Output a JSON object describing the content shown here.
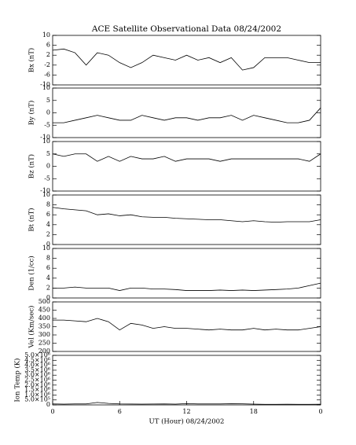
{
  "chart_data": [
    {
      "type": "line",
      "title": "ACE Satellite Observational Data   08/24/2002",
      "ylabel": "Bx (nT)",
      "x": [
        0,
        1,
        2,
        3,
        4,
        5,
        6,
        7,
        8,
        9,
        10,
        11,
        12,
        13,
        14,
        15,
        16,
        17,
        18,
        19,
        20,
        21,
        22,
        23,
        24
      ],
      "values": [
        4,
        4.5,
        3,
        -2,
        3,
        2,
        -1,
        -3,
        -1,
        2,
        1,
        0,
        2,
        0,
        1,
        -1,
        1,
        -4,
        -3,
        1,
        1,
        1,
        0,
        -1,
        -1
      ],
      "xlim": [
        0,
        24
      ],
      "ylim": [
        -10,
        10
      ],
      "yticks": [
        -10,
        -6,
        -2,
        2,
        6,
        10
      ],
      "color": "#000000"
    },
    {
      "type": "line",
      "ylabel": "By (nT)",
      "x": [
        0,
        1,
        2,
        3,
        4,
        5,
        6,
        7,
        8,
        9,
        10,
        11,
        12,
        13,
        14,
        15,
        16,
        17,
        18,
        19,
        20,
        21,
        22,
        23,
        24
      ],
      "values": [
        -4,
        -4,
        -3,
        -2,
        -1,
        -2,
        -3,
        -3,
        -1,
        -2,
        -3,
        -2,
        -2,
        -3,
        -2,
        -2,
        -1,
        -3,
        -1,
        -2,
        -3,
        -4,
        -4,
        -3,
        2
      ],
      "xlim": [
        0,
        24
      ],
      "ylim": [
        -10,
        10
      ],
      "yticks": [
        -10,
        -5,
        0,
        5,
        10
      ],
      "color": "#000000"
    },
    {
      "type": "line",
      "ylabel": "Bz (nT)",
      "x": [
        0,
        1,
        2,
        3,
        4,
        5,
        6,
        7,
        8,
        9,
        10,
        11,
        12,
        13,
        14,
        15,
        16,
        17,
        18,
        19,
        20,
        21,
        22,
        23,
        24
      ],
      "values": [
        5,
        4,
        5,
        5,
        2,
        4,
        2,
        4,
        3,
        3,
        4,
        2,
        3,
        3,
        3,
        2,
        3,
        3,
        3,
        3,
        3,
        3,
        3,
        2,
        5
      ],
      "xlim": [
        0,
        24
      ],
      "ylim": [
        -10,
        10
      ],
      "yticks": [
        -10,
        -5,
        0,
        5,
        10
      ],
      "color": "#000000"
    },
    {
      "type": "line",
      "ylabel": "Bt (nT)",
      "x": [
        0,
        1,
        2,
        3,
        4,
        5,
        6,
        7,
        8,
        9,
        10,
        11,
        12,
        13,
        14,
        15,
        16,
        17,
        18,
        19,
        20,
        21,
        22,
        23,
        24
      ],
      "values": [
        7.5,
        7.2,
        7,
        6.8,
        6,
        6.2,
        5.8,
        6,
        5.6,
        5.5,
        5.5,
        5.3,
        5.2,
        5.1,
        5,
        5,
        4.8,
        4.6,
        4.8,
        4.6,
        4.5,
        4.6,
        4.6,
        4.6,
        5
      ],
      "xlim": [
        0,
        24
      ],
      "ylim": [
        0,
        10
      ],
      "yticks": [
        0,
        2,
        4,
        6,
        8,
        10
      ],
      "color": "#000000"
    },
    {
      "type": "line",
      "ylabel": "Den (1/cc)",
      "x": [
        0,
        1,
        2,
        3,
        4,
        5,
        6,
        7,
        8,
        9,
        10,
        11,
        12,
        13,
        14,
        15,
        16,
        17,
        18,
        19,
        20,
        21,
        22,
        23,
        24
      ],
      "values": [
        2,
        2,
        2.2,
        2,
        2,
        2,
        1.5,
        2,
        2,
        1.8,
        1.8,
        1.7,
        1.5,
        1.5,
        1.5,
        1.6,
        1.5,
        1.6,
        1.5,
        1.6,
        1.7,
        1.8,
        2,
        2.5,
        3
      ],
      "xlim": [
        0,
        24
      ],
      "ylim": [
        0,
        10
      ],
      "yticks": [
        0,
        2,
        4,
        6,
        8,
        10
      ],
      "color": "#000000"
    },
    {
      "type": "line",
      "ylabel": "Vel (Km/sec)",
      "x": [
        0,
        1,
        2,
        3,
        4,
        5,
        6,
        7,
        8,
        9,
        10,
        11,
        12,
        13,
        14,
        15,
        16,
        17,
        18,
        19,
        20,
        21,
        22,
        23,
        24
      ],
      "values": [
        390,
        390,
        385,
        380,
        400,
        380,
        330,
        370,
        360,
        340,
        350,
        340,
        340,
        335,
        330,
        335,
        330,
        330,
        340,
        330,
        335,
        330,
        330,
        340,
        350
      ],
      "xlim": [
        0,
        24
      ],
      "ylim": [
        200,
        500
      ],
      "yticks": [
        200,
        250,
        300,
        350,
        400,
        450,
        500
      ],
      "color": "#000000"
    },
    {
      "type": "line",
      "ylabel": "Ion Temp (K)",
      "xlabel": "UT (Hour)  08/24/2002",
      "x": [
        0,
        1,
        2,
        3,
        4,
        5,
        6,
        7,
        8,
        9,
        10,
        11,
        12,
        13,
        14,
        15,
        16,
        17,
        18,
        19,
        20,
        21,
        22,
        23,
        24
      ],
      "values": [
        100000,
        80000,
        100000,
        100000,
        250000,
        150000,
        100000,
        90000,
        80000,
        90000,
        100000,
        80000,
        130000,
        100000,
        100000,
        100000,
        120000,
        110000,
        80000,
        60000,
        60000,
        70000,
        60000,
        60000,
        70000
      ],
      "xlim": [
        0,
        24
      ],
      "xticks": [
        0,
        6,
        12,
        18,
        {
          "value": 24,
          "label": "0"
        }
      ],
      "ylim": [
        0,
        5000000
      ],
      "yticks": [
        0,
        {
          "value": 500000,
          "label": "5.0×10⁵"
        },
        {
          "value": 1000000,
          "label": "1.0×10⁶"
        },
        {
          "value": 1500000,
          "label": "1.5×10⁶"
        },
        {
          "value": 2000000,
          "label": "2.0×10⁶"
        },
        {
          "value": 2500000,
          "label": "2.5×10⁶"
        },
        {
          "value": 3000000,
          "label": "3.0×10⁶"
        },
        {
          "value": 3500000,
          "label": "3.5×10⁶"
        },
        {
          "value": 4000000,
          "label": "4.0×10⁶"
        },
        {
          "value": 4500000,
          "label": "4.5×10⁶"
        },
        {
          "value": 5000000,
          "label": "5.0×10⁶"
        }
      ],
      "color": "#000000"
    }
  ]
}
